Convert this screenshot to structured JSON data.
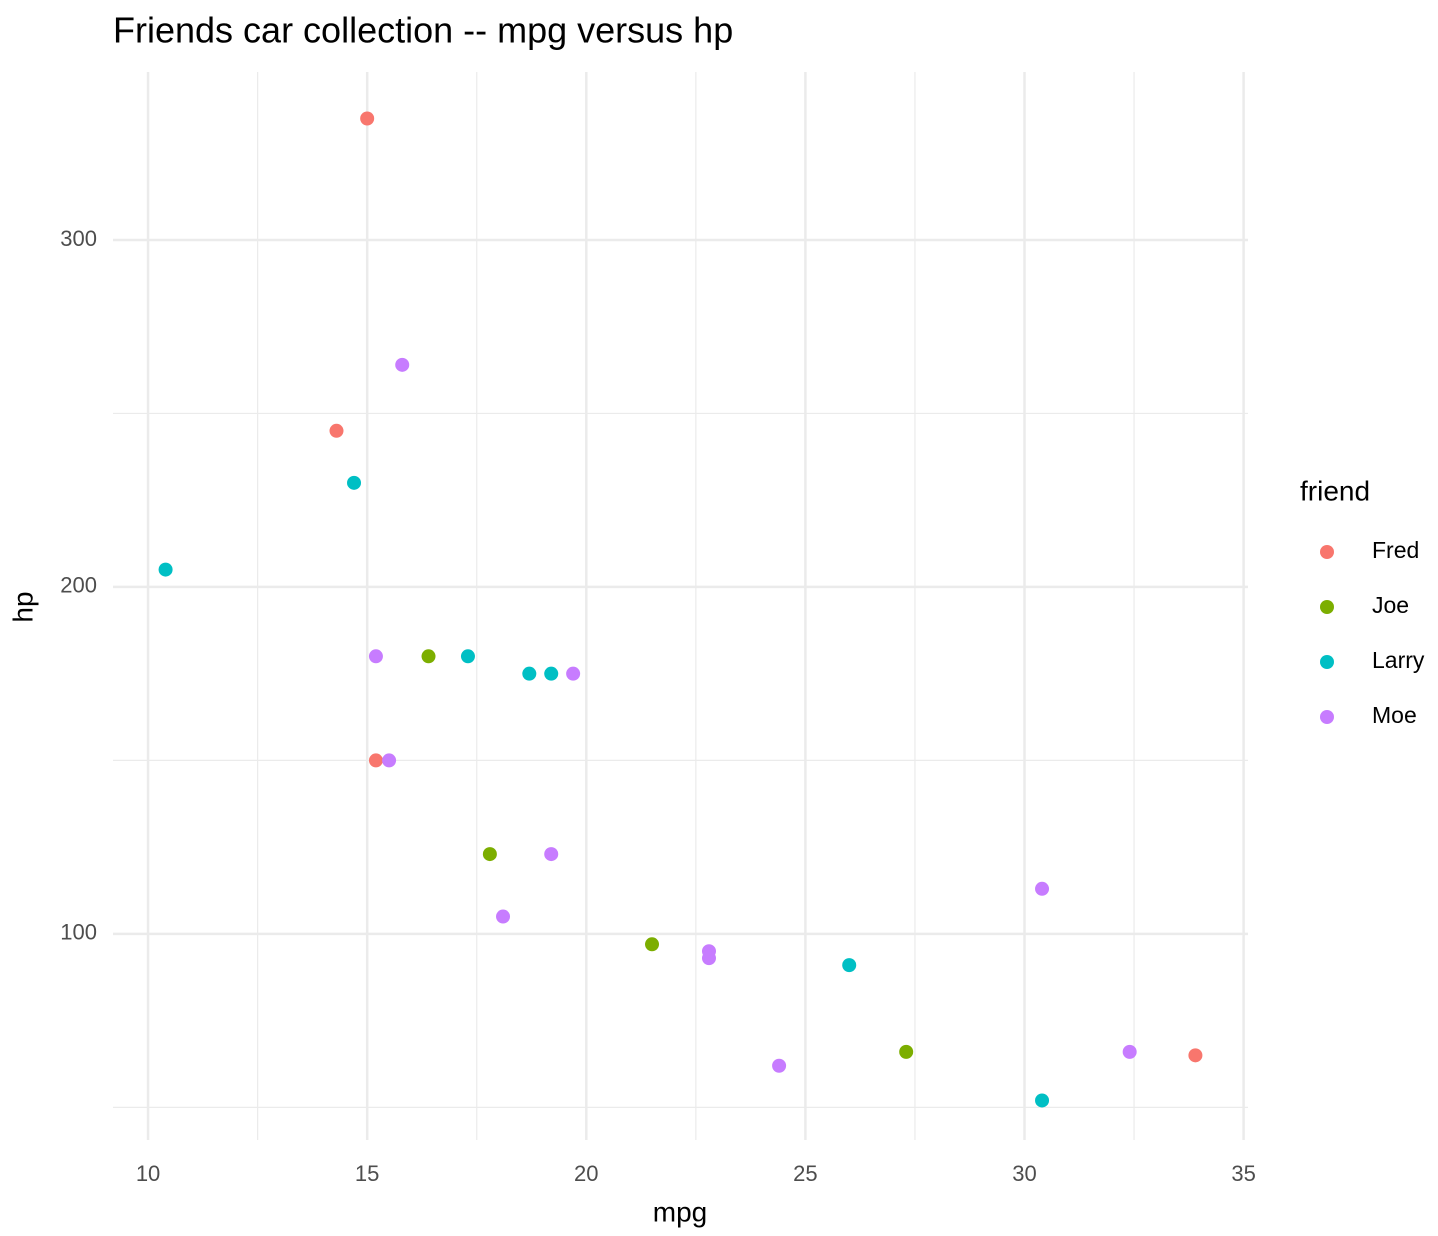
{
  "chart_data": {
    "type": "scatter",
    "title": "Friends car collection -- mpg versus hp",
    "x_label": "mpg",
    "y_label": "hp",
    "legend_title": "friend",
    "legend_position": "right",
    "grid": true,
    "xlim": [
      9.2,
      35.1
    ],
    "ylim": [
      40.6,
      348.4
    ],
    "xticks": [
      10,
      15,
      20,
      25,
      30,
      35
    ],
    "yticks": [
      100,
      200,
      300
    ],
    "x_minor_ticks": [
      12.5,
      17.5,
      22.5,
      27.5,
      32.5
    ],
    "y_minor_ticks": [
      50,
      150,
      250
    ],
    "series": [
      {
        "name": "Fred",
        "color": "#F8766D",
        "x": [
          15.0,
          14.3,
          15.2,
          33.9
        ],
        "y": [
          335,
          245,
          150,
          65
        ]
      },
      {
        "name": "Joe",
        "color": "#7CAE00",
        "x": [
          16.4,
          17.8,
          21.5,
          27.3
        ],
        "y": [
          180,
          123,
          97,
          66
        ]
      },
      {
        "name": "Larry",
        "color": "#00BFC4",
        "x": [
          10.4,
          14.7,
          17.3,
          18.7,
          19.2,
          26.0,
          30.4
        ],
        "y": [
          205,
          230,
          180,
          175,
          175,
          91,
          52
        ]
      },
      {
        "name": "Moe",
        "color": "#C77CFF",
        "x": [
          15.8,
          15.2,
          19.7,
          15.5,
          19.2,
          18.1,
          30.4,
          22.8,
          22.8,
          24.4,
          32.4
        ],
        "y": [
          264,
          180,
          175,
          150,
          123,
          105,
          113,
          95,
          93,
          62,
          66
        ]
      }
    ]
  }
}
